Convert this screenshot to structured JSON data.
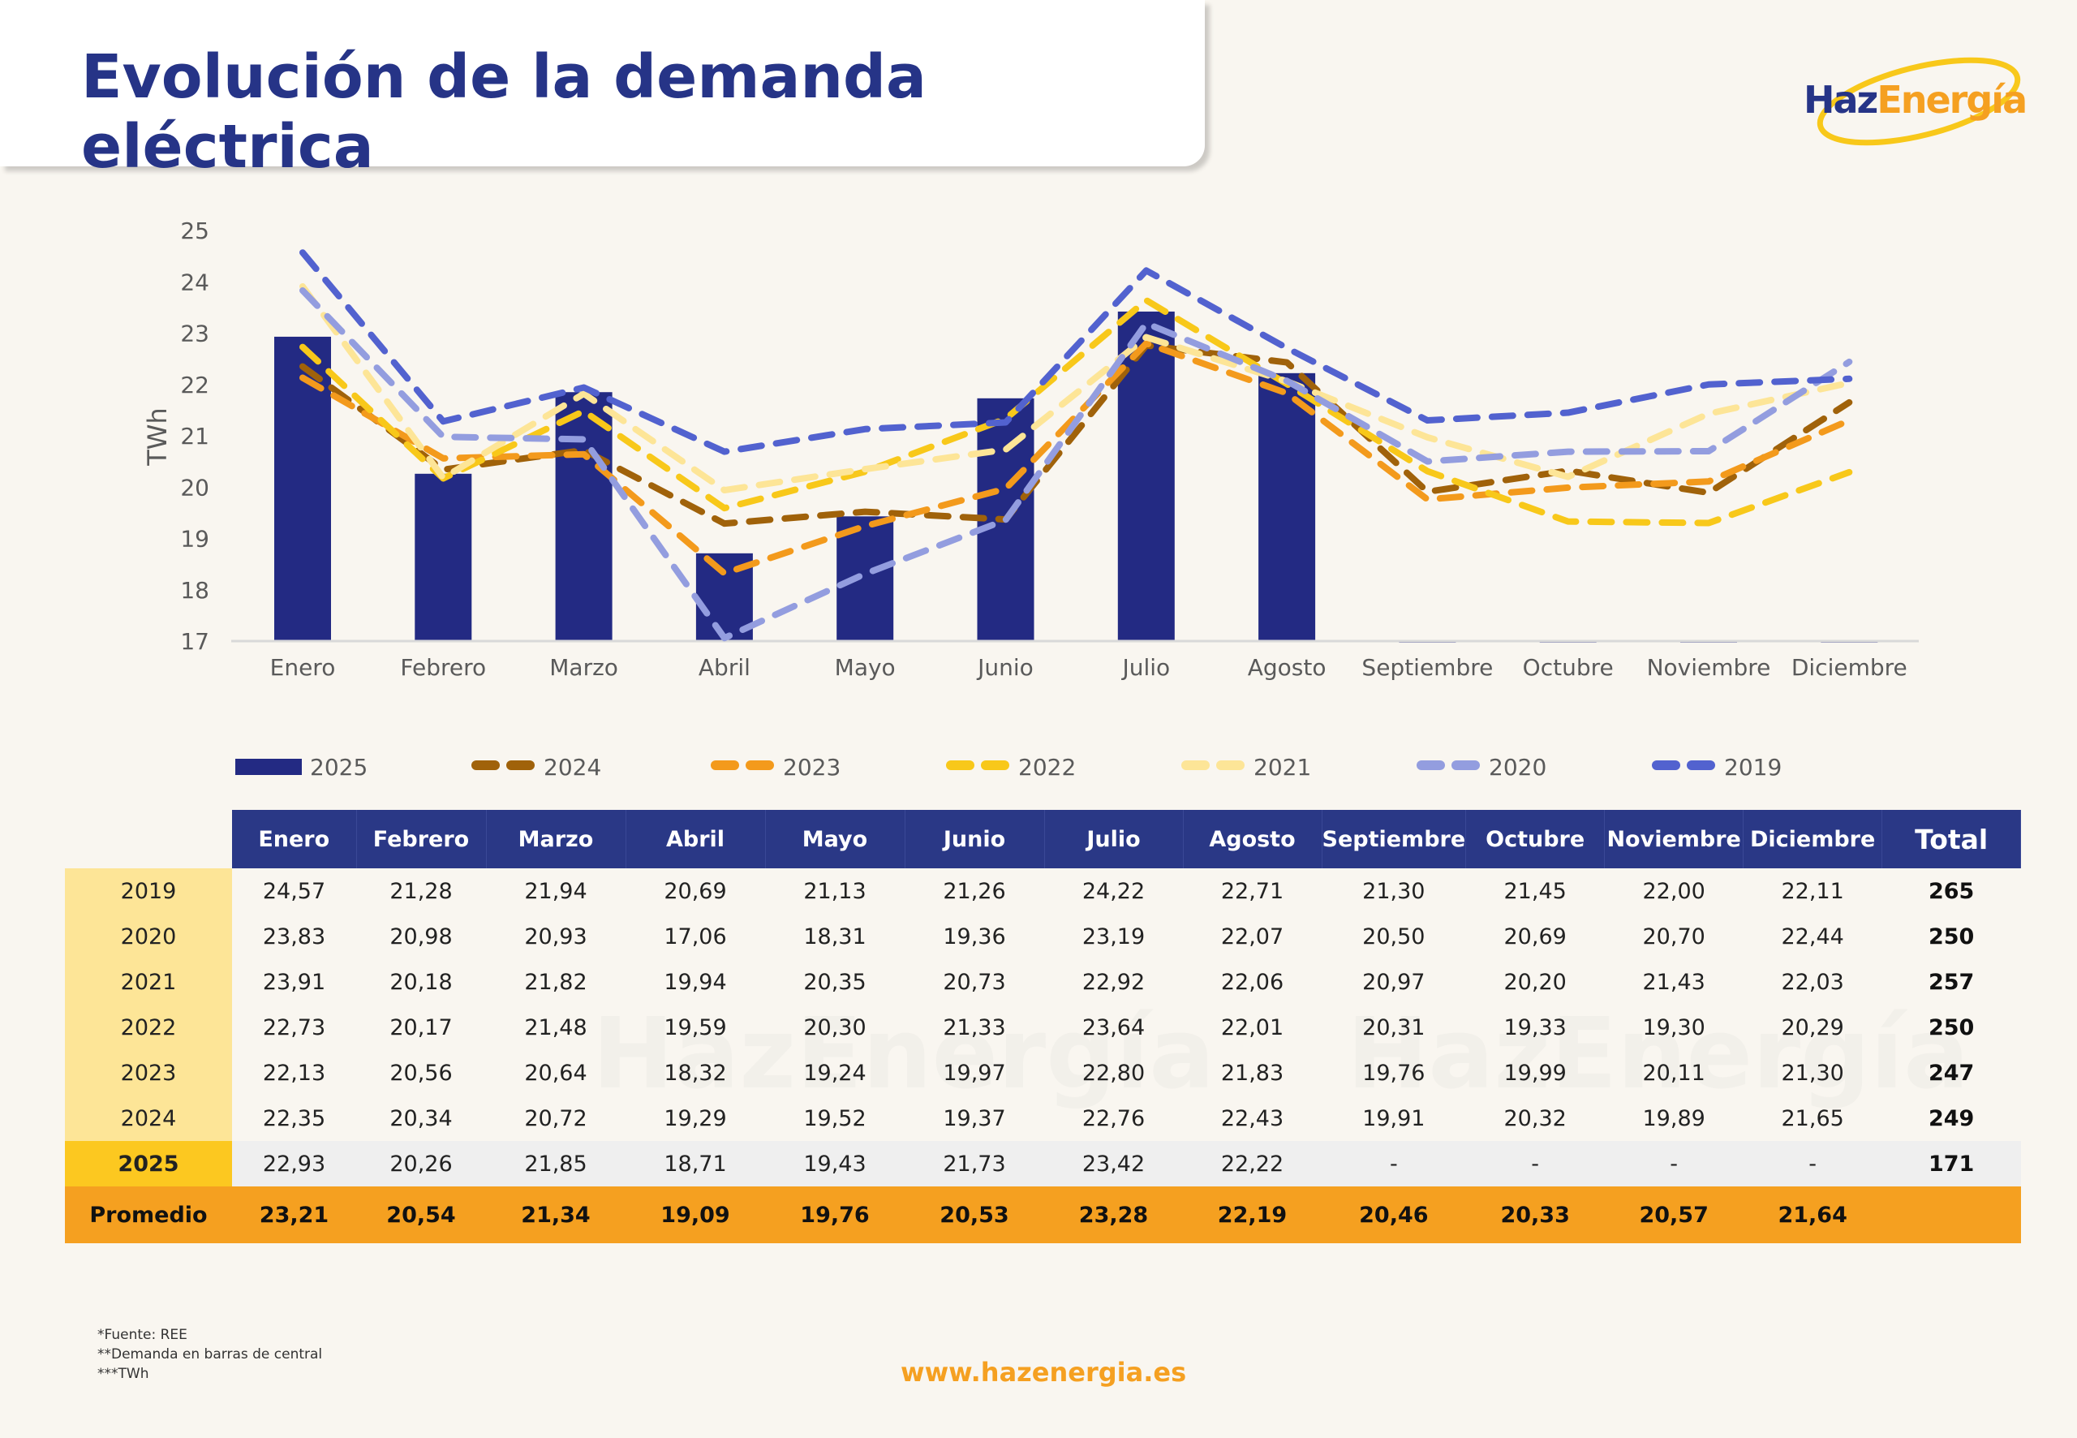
{
  "header": {
    "title": "Evolución de la demanda eléctrica",
    "logo": {
      "part1": "Haz",
      "part2": "Energía",
      "colors": {
        "haz": "#263487",
        "energia": "#f5a021",
        "ring": "#f8c81a"
      }
    }
  },
  "colors": {
    "2025": "#232a83",
    "2024": "#a0620a",
    "2023": "#f39a1c",
    "2022": "#f8c81a",
    "2021": "#fde597",
    "2020": "#939ddf",
    "2019": "#5262cf",
    "header_bg": "#2a3886",
    "year_col": "#fde597",
    "current_year_col": "#fcc820",
    "avg_row": "#f5a020",
    "background": "#f9f6f0"
  },
  "chart_data": {
    "type": "bar",
    "title": "Evolución de la demanda eléctrica",
    "xlabel": "",
    "ylabel": "TWh",
    "ylim": [
      17,
      25
    ],
    "yticks": [
      17,
      18,
      19,
      20,
      21,
      22,
      23,
      24,
      25
    ],
    "grid": false,
    "legend_position": "bottom",
    "categories": [
      "Enero",
      "Febrero",
      "Marzo",
      "Abril",
      "Mayo",
      "Junio",
      "Julio",
      "Agosto",
      "Septiembre",
      "Octubre",
      "Noviembre",
      "Diciembre"
    ],
    "series": [
      {
        "name": "2025",
        "type": "bar",
        "values": [
          22.93,
          20.26,
          21.85,
          18.71,
          19.43,
          21.73,
          23.42,
          22.22,
          null,
          null,
          null,
          null
        ]
      },
      {
        "name": "2024",
        "type": "line-dashed",
        "values": [
          22.35,
          20.34,
          20.72,
          19.29,
          19.52,
          19.37,
          22.76,
          22.43,
          19.91,
          20.32,
          19.89,
          21.65
        ]
      },
      {
        "name": "2023",
        "type": "line-dashed",
        "values": [
          22.13,
          20.56,
          20.64,
          18.32,
          19.24,
          19.97,
          22.8,
          21.83,
          19.76,
          19.99,
          20.11,
          21.3
        ]
      },
      {
        "name": "2022",
        "type": "line-dashed",
        "values": [
          22.73,
          20.17,
          21.48,
          19.59,
          20.3,
          21.33,
          23.64,
          22.01,
          20.31,
          19.33,
          19.3,
          20.29
        ]
      },
      {
        "name": "2021",
        "type": "line-dashed",
        "values": [
          23.91,
          20.18,
          21.82,
          19.94,
          20.35,
          20.73,
          22.92,
          22.06,
          20.97,
          20.2,
          21.43,
          22.03
        ]
      },
      {
        "name": "2020",
        "type": "line-dashed",
        "values": [
          23.83,
          20.98,
          20.93,
          17.06,
          18.31,
          19.36,
          23.19,
          22.07,
          20.5,
          20.69,
          20.7,
          22.44
        ]
      },
      {
        "name": "2019",
        "type": "line-dashed",
        "values": [
          24.57,
          21.28,
          21.94,
          20.69,
          21.13,
          21.26,
          24.22,
          22.71,
          21.3,
          21.45,
          22.0,
          22.11
        ]
      }
    ]
  },
  "legend": [
    "2025",
    "2024",
    "2023",
    "2022",
    "2021",
    "2020",
    "2019"
  ],
  "table": {
    "headers": [
      "Enero",
      "Febrero",
      "Marzo",
      "Abril",
      "Mayo",
      "Junio",
      "Julio",
      "Agosto",
      "Septiembre",
      "Octubre",
      "Noviembre",
      "Diciembre",
      "Total"
    ],
    "rows": [
      {
        "year": "2019",
        "values": [
          "24,57",
          "21,28",
          "21,94",
          "20,69",
          "21,13",
          "21,26",
          "24,22",
          "22,71",
          "21,30",
          "21,45",
          "22,00",
          "22,11"
        ],
        "total": "265"
      },
      {
        "year": "2020",
        "values": [
          "23,83",
          "20,98",
          "20,93",
          "17,06",
          "18,31",
          "19,36",
          "23,19",
          "22,07",
          "20,50",
          "20,69",
          "20,70",
          "22,44"
        ],
        "total": "250"
      },
      {
        "year": "2021",
        "values": [
          "23,91",
          "20,18",
          "21,82",
          "19,94",
          "20,35",
          "20,73",
          "22,92",
          "22,06",
          "20,97",
          "20,20",
          "21,43",
          "22,03"
        ],
        "total": "257"
      },
      {
        "year": "2022",
        "values": [
          "22,73",
          "20,17",
          "21,48",
          "19,59",
          "20,30",
          "21,33",
          "23,64",
          "22,01",
          "20,31",
          "19,33",
          "19,30",
          "20,29"
        ],
        "total": "250"
      },
      {
        "year": "2023",
        "values": [
          "22,13",
          "20,56",
          "20,64",
          "18,32",
          "19,24",
          "19,97",
          "22,80",
          "21,83",
          "19,76",
          "19,99",
          "20,11",
          "21,30"
        ],
        "total": "247"
      },
      {
        "year": "2024",
        "values": [
          "22,35",
          "20,34",
          "20,72",
          "19,29",
          "19,52",
          "19,37",
          "22,76",
          "22,43",
          "19,91",
          "20,32",
          "19,89",
          "21,65"
        ],
        "total": "249"
      },
      {
        "year": "2025",
        "values": [
          "22,93",
          "20,26",
          "21,85",
          "18,71",
          "19,43",
          "21,73",
          "23,42",
          "22,22",
          "-",
          "-",
          "-",
          "-"
        ],
        "total": "171",
        "current": true
      }
    ],
    "average": {
      "label": "Promedio",
      "values": [
        "23,21",
        "20,54",
        "21,34",
        "19,09",
        "19,76",
        "20,53",
        "23,28",
        "22,19",
        "20,46",
        "20,33",
        "20,57",
        "21,64"
      ],
      "total": ""
    }
  },
  "footer": {
    "notes": [
      "*Fuente: REE",
      "**Demanda en barras de central",
      "***TWh"
    ],
    "website": "www.hazenergia.es"
  }
}
